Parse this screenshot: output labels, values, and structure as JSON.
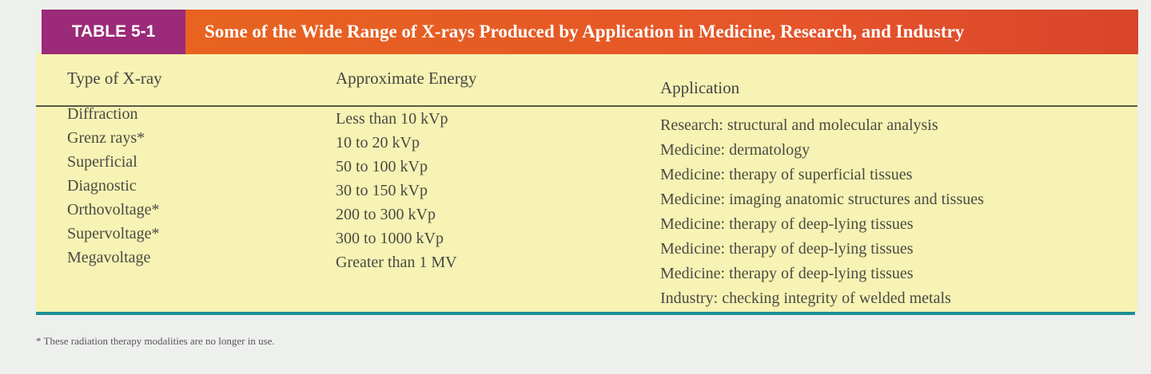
{
  "header": {
    "label": "TABLE 5-1",
    "title": "Some of the Wide Range of X-rays Produced by Application in Medicine, Research, and Industry"
  },
  "table": {
    "columns": [
      "Type of X-ray",
      "Approximate Energy",
      "Application"
    ],
    "rows": [
      {
        "type": "Diffraction",
        "energy": "Less than 10 kVp",
        "applications": [
          "Research: structural and molecular analysis"
        ]
      },
      {
        "type": "Grenz rays*",
        "energy": "10 to 20 kVp",
        "applications": [
          "Medicine: dermatology"
        ]
      },
      {
        "type": "Superficial",
        "energy": "50 to 100 kVp",
        "applications": [
          "Medicine: therapy of superficial tissues"
        ]
      },
      {
        "type": "Diagnostic",
        "energy": "30 to 150 kVp",
        "applications": [
          "Medicine: imaging anatomic structures and tissues"
        ]
      },
      {
        "type": "Orthovoltage*",
        "energy": "200 to 300 kVp",
        "applications": [
          "Medicine: therapy of deep-lying tissues"
        ]
      },
      {
        "type": "Supervoltage*",
        "energy": "300 to 1000 kVp",
        "applications": [
          "Medicine: therapy of deep-lying tissues"
        ]
      },
      {
        "type": "Megavoltage",
        "energy": "Greater than 1 MV",
        "applications": [
          "Medicine: therapy of deep-lying tissues",
          "Industry: checking integrity of welded metals"
        ]
      }
    ]
  },
  "footnote": "* These radiation therapy modalities are no longer in use."
}
